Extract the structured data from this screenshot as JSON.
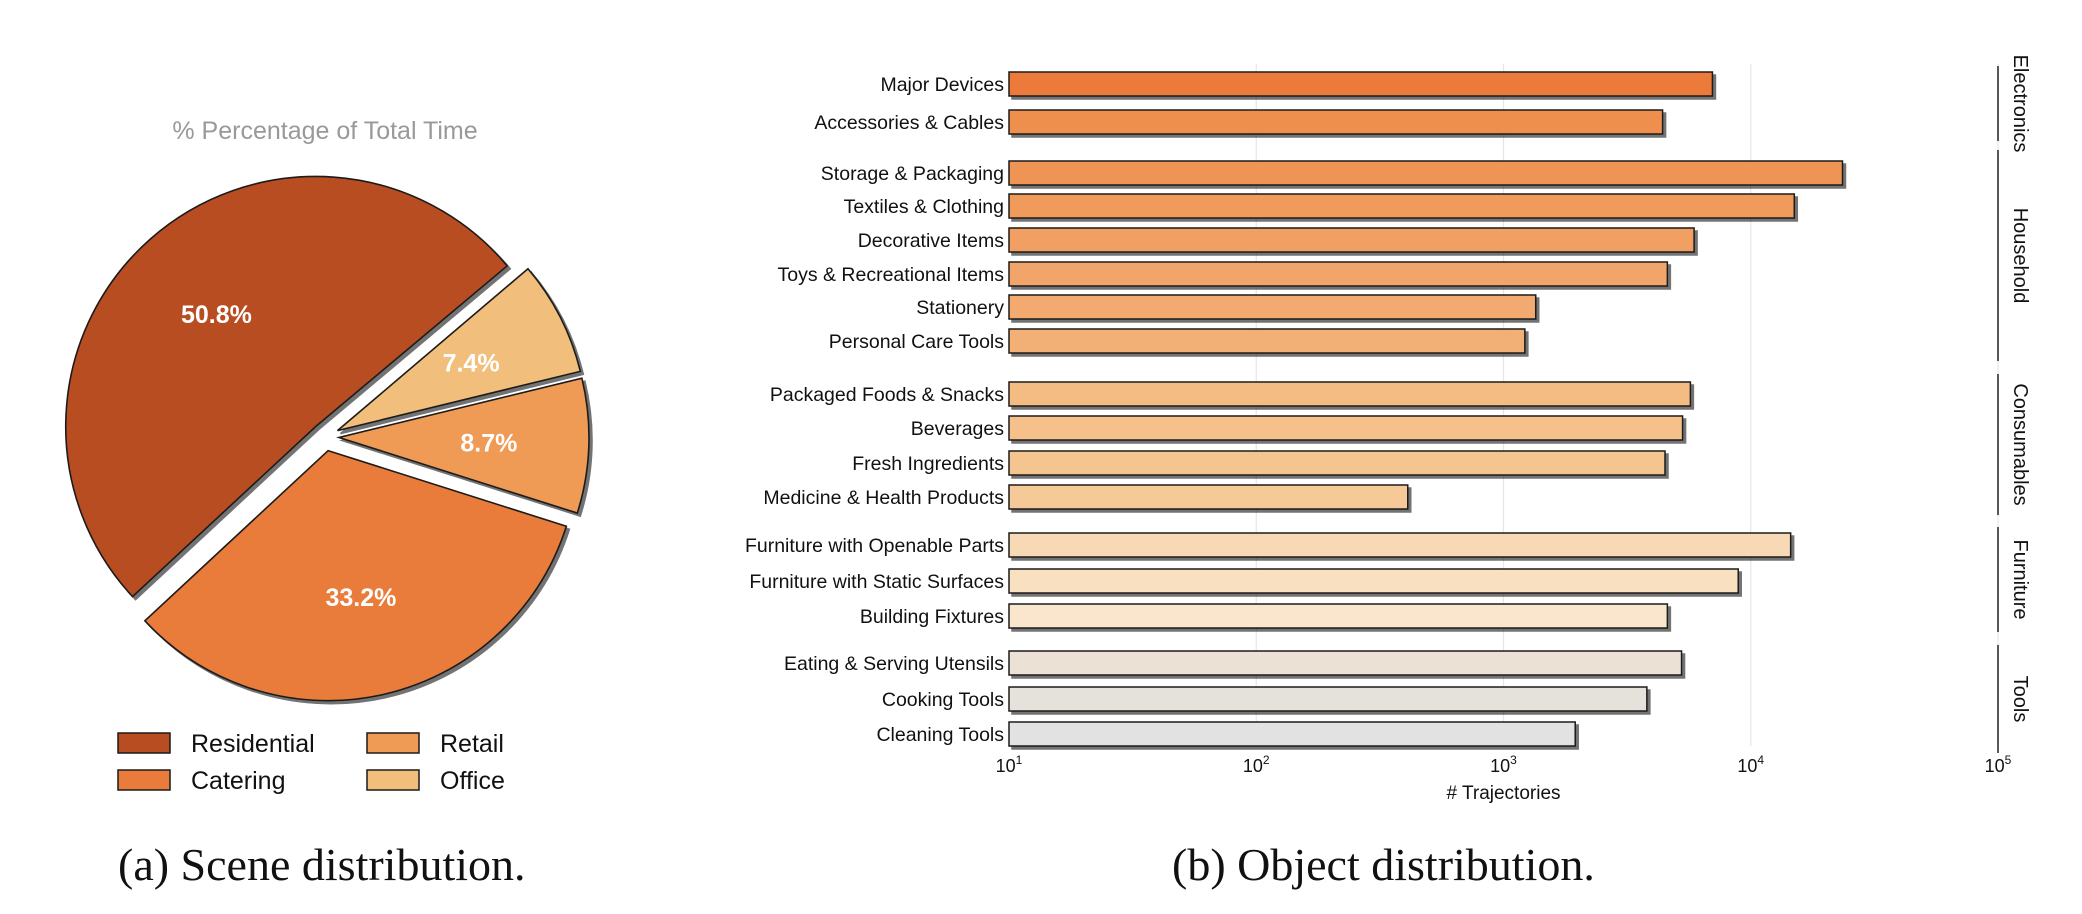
{
  "captions": {
    "a": "(a) Scene distribution.",
    "b": "(b) Object distribution."
  },
  "chart_data": [
    {
      "type": "pie",
      "title": "% Percentage of Total Time",
      "slices": [
        {
          "label": "Residential",
          "value": 50.8,
          "display": "50.8%",
          "color": "#b94d22"
        },
        {
          "label": "Catering",
          "value": 33.2,
          "display": "33.2%",
          "color": "#e97c3a"
        },
        {
          "label": "Retail",
          "value": 8.7,
          "display": "8.7%",
          "color": "#ef9a55"
        },
        {
          "label": "Office",
          "value": 7.4,
          "display": "7.4%",
          "color": "#f1be7c"
        }
      ],
      "legend": [
        "Residential",
        "Retail",
        "Catering",
        "Office"
      ],
      "legend_position": "bottom"
    },
    {
      "type": "bar",
      "orientation": "horizontal",
      "xlabel": "# Trajectories",
      "xscale": "log",
      "xlim": [
        10,
        100000
      ],
      "xticks": [
        10,
        100,
        1000,
        10000,
        100000
      ],
      "grid": "vertical",
      "groups": [
        {
          "name": "Electronics",
          "items": [
            {
              "label": "Major Devices",
              "value": 7000,
              "color": "#ec7a3a"
            },
            {
              "label": "Accessories & Cables",
              "value": 4400,
              "color": "#ef8f4d"
            }
          ]
        },
        {
          "name": "Household",
          "items": [
            {
              "label": "Storage & Packaging",
              "value": 23500,
              "color": "#ef9455"
            },
            {
              "label": "Textiles & Clothing",
              "value": 15000,
              "color": "#f09a5c"
            },
            {
              "label": "Decorative Items",
              "value": 5900,
              "color": "#f19f63"
            },
            {
              "label": "Toys & Recreational Items",
              "value": 4600,
              "color": "#f2a56a"
            },
            {
              "label": "Stationery",
              "value": 1350,
              "color": "#f2aa70"
            },
            {
              "label": "Personal Care Tools",
              "value": 1220,
              "color": "#f3b076"
            }
          ]
        },
        {
          "name": "Consumables",
          "items": [
            {
              "label": "Packaged Foods & Snacks",
              "value": 5700,
              "color": "#f4bb82"
            },
            {
              "label": "Beverages",
              "value": 5300,
              "color": "#f5c08a"
            },
            {
              "label": "Fresh Ingredients",
              "value": 4500,
              "color": "#f5c590"
            },
            {
              "label": "Medicine & Health Products",
              "value": 410,
              "color": "#f6ca98"
            }
          ]
        },
        {
          "name": "Furniture",
          "items": [
            {
              "label": "Furniture with Openable Parts",
              "value": 14500,
              "color": "#f7dab5"
            },
            {
              "label": "Furniture with Static Surfaces",
              "value": 8900,
              "color": "#f8e0c0"
            },
            {
              "label": "Building Fixtures",
              "value": 4600,
              "color": "#f9e6cc"
            }
          ]
        },
        {
          "name": "Tools",
          "items": [
            {
              "label": "Eating & Serving Utensils",
              "value": 5250,
              "color": "#ebe1d4"
            },
            {
              "label": "Cooking Tools",
              "value": 3800,
              "color": "#e5e2dc"
            },
            {
              "label": "Cleaning Tools",
              "value": 1950,
              "color": "#e2e2e2"
            }
          ]
        }
      ]
    }
  ]
}
